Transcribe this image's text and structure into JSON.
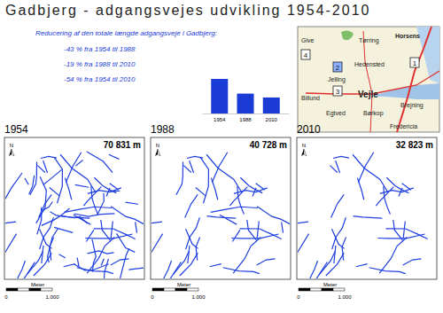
{
  "title": "Gadbjerg - adgangsvejes udvikling 1954-2010",
  "summary": {
    "heading": "Reducering af den totale længde adgangsveje i Gadbjerg:",
    "lines": [
      "-43 % fra 1954 til 1988",
      "-19 % fra 1988 til 2010",
      "-54 % fra 1954 til 2010"
    ]
  },
  "chart_data": {
    "type": "bar",
    "categories": [
      "1954",
      "1988",
      "2010"
    ],
    "values": [
      70831,
      40728,
      32823
    ],
    "color": "#1a3bd6",
    "tick_labels": "x"
  },
  "inset_map": {
    "places": [
      "Give",
      "Tørring",
      "Horsens",
      "Hedensted",
      "Jelling",
      "Billund",
      "Vejle",
      "Brejning",
      "Egtved",
      "Børkop",
      "Fredericia"
    ],
    "areas": [
      "4",
      "1",
      "2",
      "3"
    ]
  },
  "panels": [
    {
      "year": "1954",
      "length": "70 831 m",
      "north": "N",
      "scale_unit": "Meter",
      "scale_labels": [
        "0",
        "1.000"
      ]
    },
    {
      "year": "1988",
      "length": "40 728 m",
      "north": "N",
      "scale_unit": "Meter",
      "scale_labels": [
        "0",
        "1.000"
      ]
    },
    {
      "year": "2010",
      "length": "32 823 m",
      "north": "N",
      "scale_unit": "Meter",
      "scale_labels": [
        "0",
        "1.000"
      ]
    }
  ]
}
